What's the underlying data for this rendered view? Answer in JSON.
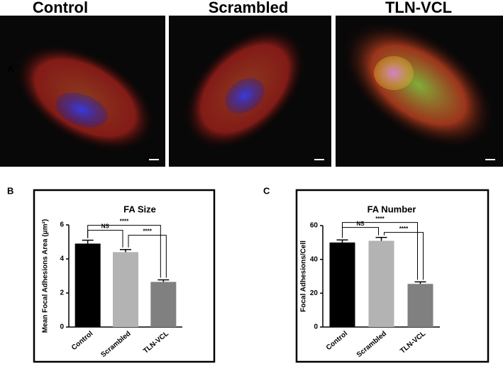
{
  "figure": {
    "panel_labels": [
      "A",
      "B",
      "C"
    ],
    "image_titles": [
      "Control",
      "Scrambled",
      "TLN-VCL"
    ]
  },
  "chart_data": [
    {
      "type": "bar",
      "title": "FA Size",
      "y_label": "Mean Focal Adhesions Area (μm²)",
      "categories": [
        "Control",
        "Scrambled",
        "TLN-VCL"
      ],
      "values": [
        4.9,
        4.4,
        2.65
      ],
      "errors": [
        0.2,
        0.15,
        0.12
      ],
      "colors": [
        "#000000",
        "#b3b3b3",
        "#808080"
      ],
      "ylim": [
        0,
        6
      ],
      "yticks": [
        0,
        2,
        4,
        6
      ],
      "annotations": [
        "NS",
        "****",
        "****"
      ]
    },
    {
      "type": "bar",
      "title": "FA Number",
      "y_label": "Focal Adhesions/Cell",
      "categories": [
        "Control",
        "Scrambled",
        "TLN-VCL"
      ],
      "values": [
        50,
        51,
        25.5
      ],
      "errors": [
        1.5,
        2,
        1.2
      ],
      "colors": [
        "#000000",
        "#b3b3b3",
        "#808080"
      ],
      "ylim": [
        0,
        60
      ],
      "yticks": [
        0,
        20,
        40,
        60
      ],
      "annotations": [
        "NS",
        "****",
        "****"
      ]
    }
  ]
}
